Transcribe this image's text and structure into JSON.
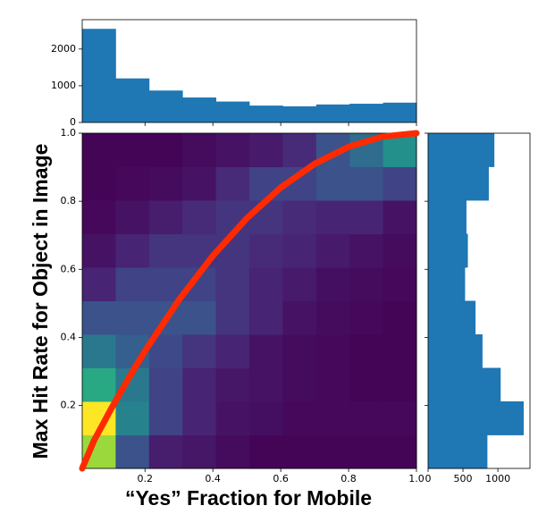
{
  "chart_data": [
    {
      "type": "heatmap",
      "xlabel": "“Yes” Fraction for Mobile",
      "ylabel": "Max Hit Rate for Object in Image",
      "xlim": [
        0.015,
        1.0
      ],
      "ylim": [
        0.015,
        1.0
      ],
      "xticks": [
        0.2,
        0.4,
        0.6,
        0.8,
        {
          "value": 1.0,
          "label": "1.0"
        }
      ],
      "yticks": [
        0.2,
        0.4,
        0.6,
        0.8,
        {
          "value": 1.0,
          "label": "1.0"
        }
      ],
      "xbins": [
        0.015,
        0.1135,
        0.212,
        0.3105,
        0.409,
        0.5075,
        0.606,
        0.7045,
        0.803,
        0.9015,
        1.0
      ],
      "ybins": [
        0.015,
        0.1135,
        0.212,
        0.3105,
        0.409,
        0.5075,
        0.606,
        0.7045,
        0.803,
        0.9015,
        1.0
      ],
      "colormap": "viridis",
      "z": [
        [
          425,
          125,
          40,
          30,
          15,
          5,
          5,
          5,
          5,
          5
        ],
        [
          500,
          225,
          100,
          50,
          25,
          20,
          10,
          10,
          10,
          10
        ],
        [
          300,
          200,
          100,
          50,
          30,
          25,
          15,
          10,
          5,
          5
        ],
        [
          200,
          150,
          110,
          75,
          50,
          25,
          15,
          10,
          5,
          5
        ],
        [
          125,
          125,
          125,
          125,
          75,
          50,
          25,
          15,
          10,
          5
        ],
        [
          50,
          100,
          100,
          100,
          75,
          50,
          35,
          20,
          15,
          10
        ],
        [
          25,
          50,
          75,
          75,
          75,
          60,
          50,
          35,
          25,
          15
        ],
        [
          10,
          25,
          40,
          60,
          75,
          75,
          60,
          50,
          50,
          25
        ],
        [
          5,
          10,
          15,
          25,
          60,
          100,
          100,
          125,
          125,
          100
        ],
        [
          5,
          5,
          5,
          15,
          25,
          35,
          60,
          125,
          175,
          250
        ]
      ],
      "line": {
        "color": "#ff2a00",
        "x": [
          0.015,
          0.05,
          0.1,
          0.15,
          0.2,
          0.3,
          0.4,
          0.5,
          0.6,
          0.7,
          0.8,
          0.9,
          1.0
        ],
        "y": [
          0.015,
          0.0975,
          0.19,
          0.2775,
          0.36,
          0.51,
          0.64,
          0.75,
          0.84,
          0.91,
          0.96,
          0.99,
          1.0
        ]
      }
    },
    {
      "type": "histogram",
      "orientation": "vertical",
      "color": "#1f77b4",
      "bins": [
        0.015,
        0.1135,
        0.212,
        0.3105,
        0.409,
        0.5075,
        0.606,
        0.7045,
        0.803,
        0.9015,
        1.0
      ],
      "values": [
        2550,
        1200,
        870,
        680,
        570,
        460,
        440,
        490,
        510,
        540
      ],
      "ylim": [
        0,
        2800
      ],
      "yticks": [
        0,
        1000,
        2000
      ]
    },
    {
      "type": "histogram",
      "orientation": "horizontal",
      "color": "#1f77b4",
      "bins": [
        0.015,
        0.1135,
        0.212,
        0.3105,
        0.409,
        0.5075,
        0.606,
        0.7045,
        0.803,
        0.9015,
        1.0
      ],
      "values": [
        850,
        1370,
        1040,
        780,
        680,
        530,
        570,
        550,
        870,
        950
      ],
      "xlim": [
        0,
        1460
      ],
      "xticks": [
        0,
        500,
        1000
      ]
    }
  ]
}
